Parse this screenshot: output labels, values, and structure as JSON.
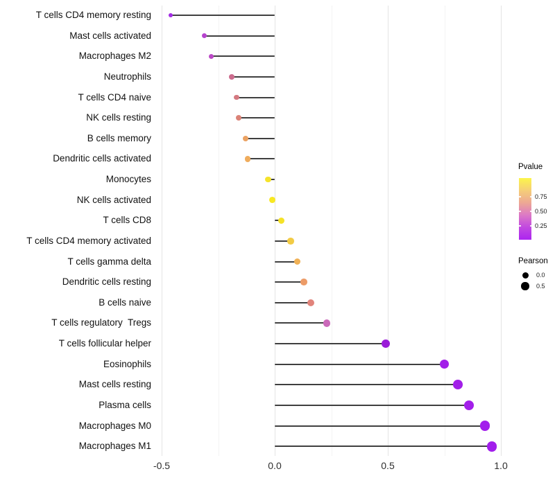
{
  "chart_data": {
    "type": "lollipop",
    "orientation": "horizontal",
    "title": "",
    "xlabel": "",
    "ylabel": "",
    "xlim": [
      -0.53,
      1.04
    ],
    "x_major_ticks": [
      -0.5,
      0.0,
      0.5,
      1.0
    ],
    "x_tick_labels": [
      "-0.5",
      "0.0",
      "0.5",
      "1.0"
    ],
    "x_minor_ticks": [
      -0.25,
      0.25,
      0.75
    ],
    "grid": "vertical-only",
    "color_encodes": "Pvalue",
    "size_encodes": "Pearson",
    "points": [
      {
        "label": "T cells CD4 memory resting",
        "pearson": -0.46,
        "color": "#A32CE4"
      },
      {
        "label": "Mast cells activated",
        "pearson": -0.31,
        "color": "#B644CE"
      },
      {
        "label": "Macrophages M2",
        "pearson": -0.28,
        "color": "#BB49C6"
      },
      {
        "label": "Neutrophils",
        "pearson": -0.19,
        "color": "#CC6C8E"
      },
      {
        "label": "T cells CD4 naive",
        "pearson": -0.17,
        "color": "#D47981"
      },
      {
        "label": "NK cells resting",
        "pearson": -0.16,
        "color": "#DB8277"
      },
      {
        "label": "B cells memory",
        "pearson": -0.13,
        "color": "#EBA263"
      },
      {
        "label": "Dendritic cells activated",
        "pearson": -0.12,
        "color": "#EFAC5D"
      },
      {
        "label": "Monocytes",
        "pearson": -0.03,
        "color": "#F5E32B"
      },
      {
        "label": "NK cells activated",
        "pearson": -0.01,
        "color": "#F8E822"
      },
      {
        "label": "T cells CD8",
        "pearson": 0.03,
        "color": "#F5E227"
      },
      {
        "label": "T cells CD4 memory activated",
        "pearson": 0.07,
        "color": "#F2CB45"
      },
      {
        "label": "T cells gamma delta",
        "pearson": 0.1,
        "color": "#F0B156"
      },
      {
        "label": "Dendritic cells resting",
        "pearson": 0.13,
        "color": "#EC9B67"
      },
      {
        "label": "B cells naive",
        "pearson": 0.16,
        "color": "#E1847B"
      },
      {
        "label": "T cells regulatory  Tregs",
        "pearson": 0.23,
        "color": "#CB69BA"
      },
      {
        "label": "T cells follicular helper",
        "pearson": 0.49,
        "color": "#9A1BD8"
      },
      {
        "label": "Eosinophils",
        "pearson": 0.75,
        "color": "#A21FE8"
      },
      {
        "label": "Mast cells resting",
        "pearson": 0.81,
        "color": "#A21FE8"
      },
      {
        "label": "Plasma cells",
        "pearson": 0.86,
        "color": "#A31FEA"
      },
      {
        "label": "Macrophages M0",
        "pearson": 0.93,
        "color": "#A21EEC"
      },
      {
        "label": "Macrophages M1",
        "pearson": 0.96,
        "color": "#A21EEC"
      }
    ]
  },
  "legend": {
    "pvalue": {
      "title": "Pvalue",
      "tick_labels": [
        "0.75",
        "0.50",
        "0.25"
      ],
      "gradient_top_to_bottom": [
        "#FCF54A",
        "#F5CE78",
        "#EDA894",
        "#DC79C6",
        "#C148E0",
        "#AC25F0"
      ]
    },
    "pearson": {
      "title": "Pearson",
      "items": [
        {
          "label": "0.0",
          "diameter": 9
        },
        {
          "label": "0.5",
          "diameter": 11.5
        }
      ]
    }
  },
  "style": {
    "stem_color": "#3F3F3F",
    "major_grid_color": "#E4E4E4",
    "minor_grid_color": "#F3F3F3",
    "background": "#FFFFFF"
  }
}
